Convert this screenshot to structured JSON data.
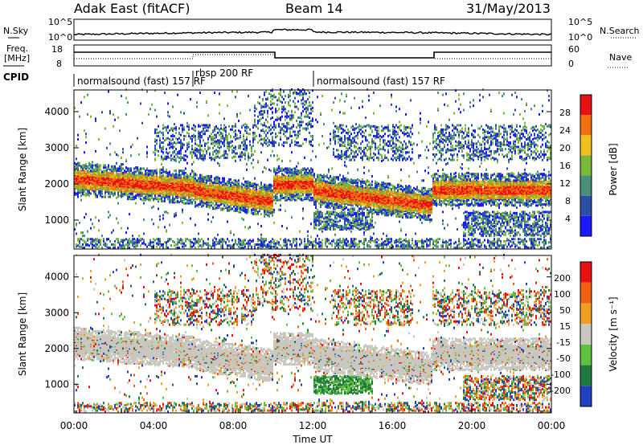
{
  "header": {
    "station": "Adak East (fitACF)",
    "beam": "Beam 14",
    "date": "31/May/2013"
  },
  "noise_panel": {
    "left_label": "N.Sky",
    "right_label": "N.Search",
    "tick_top": "10^5",
    "tick_bottom": "10^0"
  },
  "freq_panel": {
    "left_label_1": "Freq.",
    "left_label_2": "[MHz]",
    "right_label": "Nave",
    "left_ticks": [
      "18",
      "8"
    ],
    "right_ticks": [
      "60",
      "0"
    ]
  },
  "cpid": {
    "label": "CPID",
    "segments": [
      {
        "start_h": 0,
        "end_h": 6,
        "text": "normalsound (fast) 157 RF"
      },
      {
        "start_h": 6,
        "end_h": 12,
        "text": "rbsp 200 RF"
      },
      {
        "start_h": 12,
        "end_h": 24,
        "text": "normalsound (fast) 157 RF"
      }
    ]
  },
  "chart_data": [
    {
      "type": "heatmap",
      "name": "power",
      "ylabel": "Slant Range [km]",
      "y_ticks": [
        "1000",
        "2000",
        "3000",
        "4000"
      ],
      "ylim": [
        200,
        4600
      ],
      "colorbar_label": "Power [dB]",
      "colorbar_ticks": [
        "4",
        "8",
        "12",
        "16",
        "20",
        "24",
        "28"
      ],
      "colorbar_colors": [
        "#1a1aff",
        "#2b4fa6",
        "#4a8f7a",
        "#7ab83a",
        "#f0c020",
        "#f07010",
        "#e81010"
      ]
    },
    {
      "type": "heatmap",
      "name": "velocity",
      "ylabel": "Slant Range [km]",
      "y_ticks": [
        "1000",
        "2000",
        "3000",
        "4000"
      ],
      "ylim": [
        200,
        4600
      ],
      "colorbar_label": "Velocity [m s⁻¹]",
      "colorbar_ticks": [
        "200",
        "100",
        "50",
        "15",
        "-15",
        "-50",
        "-100",
        "-200"
      ],
      "colorbar_colors": [
        "#2040c0",
        "#207a40",
        "#60c040",
        "#c8c8c0",
        "#f0a020",
        "#f06010",
        "#e81010"
      ]
    }
  ],
  "time_axis": {
    "label": "Time UT",
    "ticks": [
      "00:00",
      "04:00",
      "08:00",
      "12:00",
      "16:00",
      "20:00",
      "00:00"
    ]
  }
}
